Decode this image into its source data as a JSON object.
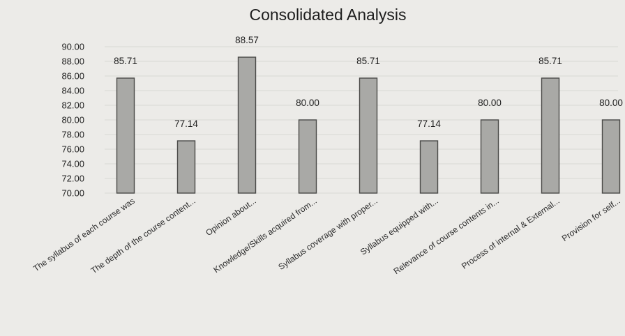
{
  "chart_data": {
    "type": "bar",
    "title": "Consolidated Analysis",
    "categories": [
      "The syllabus of each course was",
      "The depth of the course content...",
      "Opinion about...",
      "Knowledge/Skills acquired from...",
      "Syllabus coverage with proper...",
      "Syllabus equipped with...",
      "Relevance of course contents in...",
      "Process of internal & External...",
      "Provision for self..."
    ],
    "values": [
      85.71,
      77.14,
      88.57,
      80.0,
      85.71,
      77.14,
      80.0,
      85.71,
      80.0
    ],
    "value_labels": [
      "85.71",
      "77.14",
      "88.57",
      "80.00",
      "85.71",
      "77.14",
      "80.00",
      "85.71",
      "80.00"
    ],
    "y_ticks": [
      "90.00",
      "88.00",
      "86.00",
      "84.00",
      "82.00",
      "80.00",
      "78.00",
      "76.00",
      "74.00",
      "72.00",
      "70.00"
    ],
    "ylim": [
      70,
      90
    ],
    "xlabel": "",
    "ylabel": "",
    "grid": true,
    "legend": "none",
    "colors": {
      "bar_fill": "#a9a9a6",
      "bar_edge": "#4a4a48",
      "background": "#ecebe8"
    }
  }
}
